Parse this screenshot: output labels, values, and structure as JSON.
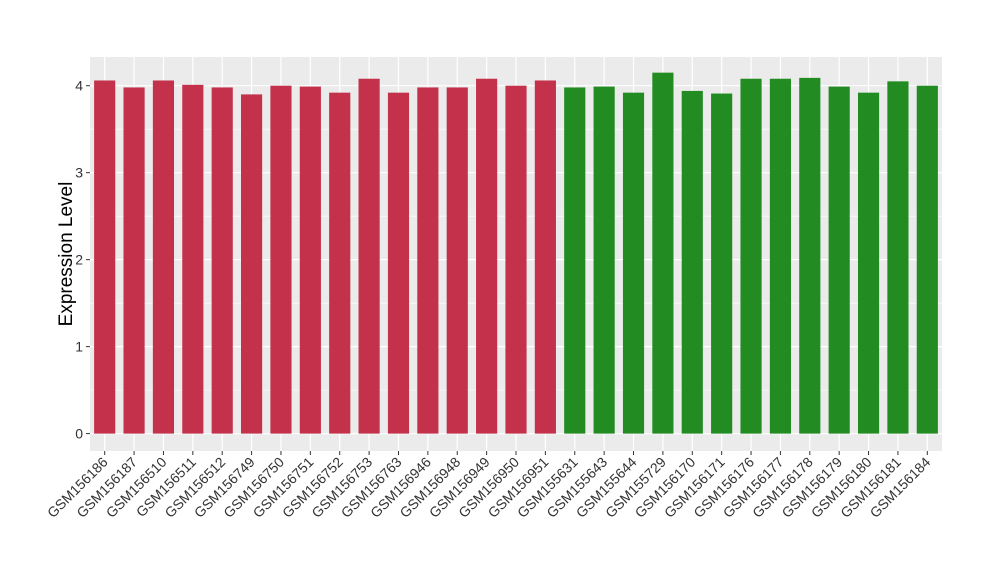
{
  "chart_data": {
    "type": "bar",
    "title": "",
    "xlabel": "",
    "ylabel": "Expression Level",
    "ylim": [
      -0.2,
      4.33
    ],
    "yticks": [
      0,
      1,
      2,
      3,
      4
    ],
    "grid": true,
    "categories": [
      "GSM156186",
      "GSM156187",
      "GSM156510",
      "GSM156511",
      "GSM156512",
      "GSM156749",
      "GSM156750",
      "GSM156751",
      "GSM156752",
      "GSM156753",
      "GSM156763",
      "GSM156946",
      "GSM156948",
      "GSM156949",
      "GSM156950",
      "GSM156951",
      "GSM155631",
      "GSM155643",
      "GSM155644",
      "GSM155729",
      "GSM156170",
      "GSM156171",
      "GSM156176",
      "GSM156177",
      "GSM156178",
      "GSM156179",
      "GSM156180",
      "GSM156181",
      "GSM156184"
    ],
    "values": [
      4.06,
      3.98,
      4.06,
      4.01,
      3.98,
      3.9,
      4.0,
      3.99,
      3.92,
      4.08,
      3.92,
      3.98,
      3.98,
      4.08,
      4.0,
      4.06,
      3.98,
      3.99,
      3.92,
      4.15,
      3.94,
      3.91,
      4.08,
      4.08,
      4.09,
      3.99,
      3.92,
      4.05,
      4.0
    ],
    "colors": [
      "#c3314a",
      "#c3314a",
      "#c3314a",
      "#c3314a",
      "#c3314a",
      "#c3314a",
      "#c3314a",
      "#c3314a",
      "#c3314a",
      "#c3314a",
      "#c3314a",
      "#c3314a",
      "#c3314a",
      "#c3314a",
      "#c3314a",
      "#c3314a",
      "#228b22",
      "#228b22",
      "#228b22",
      "#228b22",
      "#228b22",
      "#228b22",
      "#228b22",
      "#228b22",
      "#228b22",
      "#228b22",
      "#228b22",
      "#228b22",
      "#228b22"
    ],
    "panel_background": "#ebebeb",
    "gridline_color": "#ffffff"
  }
}
